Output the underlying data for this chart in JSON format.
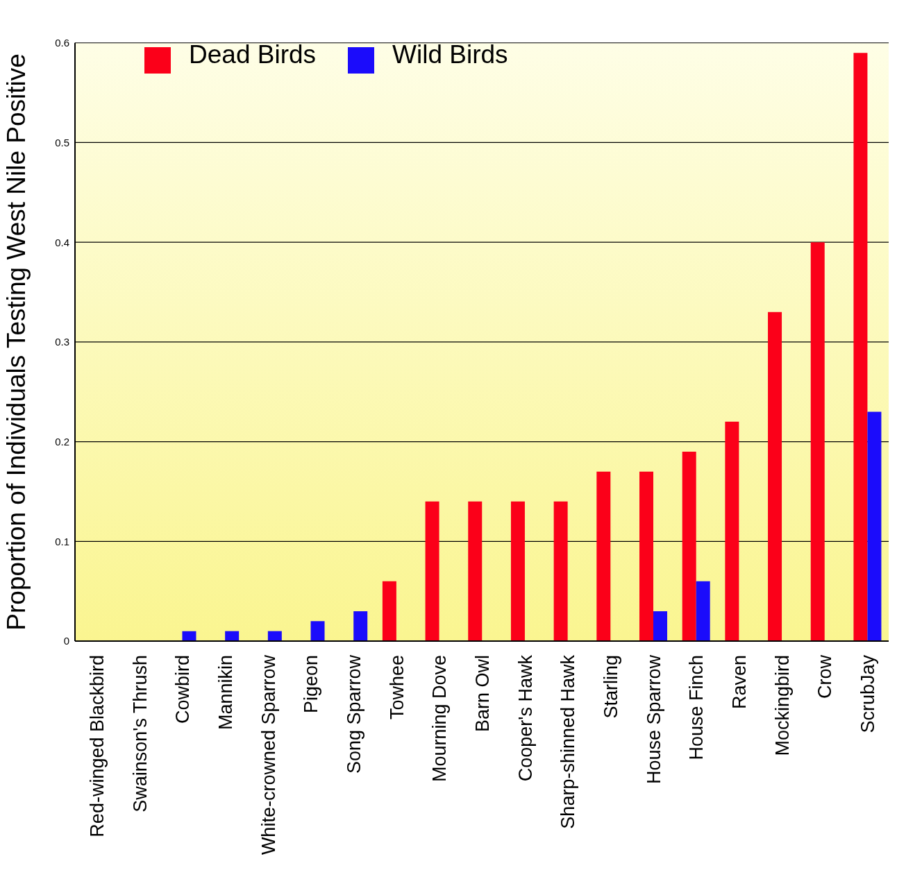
{
  "chart_data": {
    "type": "bar",
    "ylabel": "Proportion of Individuals Testing West Nile Positive",
    "categories": [
      "Red-winged Blackbird",
      "Swainson's Thrush",
      "Cowbird",
      "Mannikin",
      "White-crowned Sparrow",
      "Pigeon",
      "Song Sparrow",
      "Towhee",
      "Mourning Dove",
      "Barn Owl",
      "Cooper's Hawk",
      "Sharp-shinned Hawk",
      "Starling",
      "House Sparrow",
      "House Finch",
      "Raven",
      "Mockingbird",
      "Crow",
      "ScrubJay"
    ],
    "series": [
      {
        "name": "Dead Birds",
        "color": "#fb0019",
        "values": [
          0,
          0,
          0,
          0,
          0,
          0,
          0,
          0.06,
          0.14,
          0.14,
          0.14,
          0.14,
          0.17,
          0.17,
          0.19,
          0.22,
          0.33,
          0.4,
          0.59
        ]
      },
      {
        "name": "Wild Birds",
        "color": "#1b0cfb",
        "values": [
          0,
          0,
          0.01,
          0.01,
          0.01,
          0.02,
          0.03,
          0,
          0,
          0,
          0,
          0,
          0,
          0.03,
          0.06,
          0,
          0,
          0,
          0.23
        ]
      }
    ],
    "ylim": [
      0,
      0.6
    ],
    "yticks": [
      0,
      0.1,
      0.2,
      0.3,
      0.4,
      0.5,
      0.6
    ],
    "grid": "y",
    "legend": "top left"
  }
}
